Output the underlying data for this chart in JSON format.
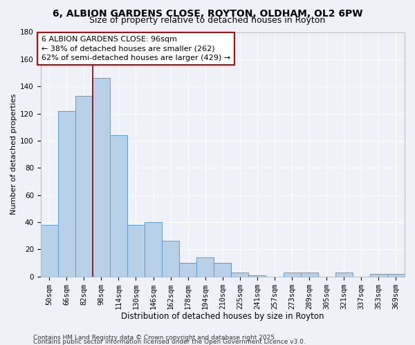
{
  "title": "6, ALBION GARDENS CLOSE, ROYTON, OLDHAM, OL2 6PW",
  "subtitle": "Size of property relative to detached houses in Royton",
  "xlabel": "Distribution of detached houses by size in Royton",
  "ylabel": "Number of detached properties",
  "bar_labels": [
    "50sqm",
    "66sqm",
    "82sqm",
    "98sqm",
    "114sqm",
    "130sqm",
    "146sqm",
    "162sqm",
    "178sqm",
    "194sqm",
    "210sqm",
    "225sqm",
    "241sqm",
    "257sqm",
    "273sqm",
    "289sqm",
    "305sqm",
    "321sqm",
    "337sqm",
    "353sqm",
    "369sqm"
  ],
  "bar_values": [
    38,
    122,
    133,
    146,
    104,
    38,
    40,
    26,
    10,
    14,
    10,
    3,
    1,
    0,
    3,
    3,
    0,
    3,
    0,
    2,
    2
  ],
  "bar_color": "#b8d0e8",
  "bar_edge_color": "#5b9bd5",
  "vline_pos": 2.5,
  "vline_color": "#990000",
  "annotation_line1": "6 ALBION GARDENS CLOSE: 96sqm",
  "annotation_line2": "← 38% of detached houses are smaller (262)",
  "annotation_line3": "62% of semi-detached houses are larger (429) →",
  "annotation_box_color": "#ffffff",
  "annotation_box_edge": "#cc0000",
  "ylim": [
    0,
    180
  ],
  "yticks": [
    0,
    20,
    40,
    60,
    80,
    100,
    120,
    140,
    160,
    180
  ],
  "footer1": "Contains HM Land Registry data © Crown copyright and database right 2025.",
  "footer2": "Contains public sector information licensed under the Open Government Licence v3.0.",
  "bg_color": "#eef2f8",
  "title_fontsize": 10,
  "subtitle_fontsize": 9,
  "xlabel_fontsize": 8.5,
  "ylabel_fontsize": 8,
  "tick_fontsize": 7.5,
  "annotation_fontsize": 8,
  "footer_fontsize": 6.5
}
